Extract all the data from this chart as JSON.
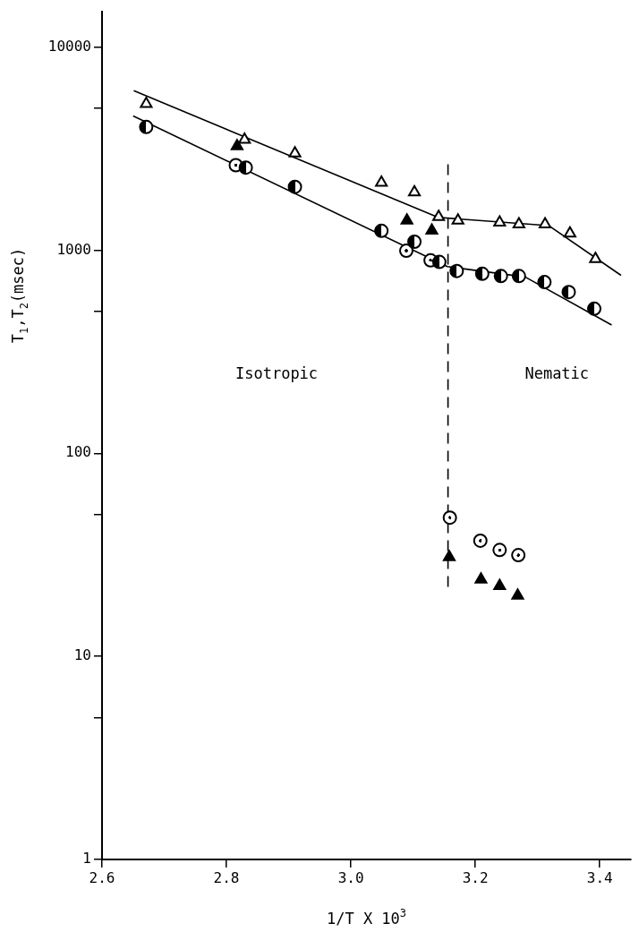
{
  "chart_data": {
    "type": "scatter",
    "xlabel": "1/T X 10$^{3}$",
    "ylabel": "T$_{1}$,T$_{2}$(msec)",
    "xlim": [
      2.6,
      3.45
    ],
    "xticks": [
      2.6,
      2.8,
      {
        "value": 3,
        "label": "3.0"
      },
      3.2,
      3.4
    ],
    "ylim": [
      1,
      15000
    ],
    "yticks": [
      1,
      {
        "value": 5,
        "label": null
      },
      10,
      {
        "value": 50,
        "label": null
      },
      100,
      {
        "value": 500,
        "label": null
      },
      1000,
      {
        "value": 5000,
        "label": null
      },
      10000
    ],
    "log": "y",
    "legend": false,
    "annotations": [
      "Isotropic",
      "Nematic"
    ],
    "series": [
      {
        "marker": "triangle",
        "color": "#000000",
        "x": [
          2.671,
          2.829,
          2.91,
          3.049,
          3.102,
          3.141,
          3.172,
          3.239,
          3.27,
          3.312,
          3.352,
          3.393
        ],
        "values": [
          5250,
          3500,
          3000,
          2150,
          1930,
          1460,
          1400,
          1370,
          1340,
          1340,
          1210,
          905
        ]
      },
      {
        "marker": "circle",
        "color": "#000000",
        "x": [
          2.671,
          2.831,
          2.91,
          3.049,
          3.102,
          3.142,
          3.17,
          3.211,
          3.241,
          3.27,
          3.311,
          3.35,
          3.391
        ],
        "values": [
          4040,
          2550,
          2050,
          1245,
          1100,
          875,
          790,
          765,
          746,
          746,
          696,
          622,
          515
        ]
      },
      {
        "marker": "triangle",
        "color": "#000000",
        "x": [
          2.817,
          3.09,
          3.13,
          3.158,
          3.209,
          3.239,
          3.268
        ],
        "values": [
          3250,
          1400,
          1250,
          30.8,
          23.9,
          22.2,
          19.9
        ]
      },
      {
        "marker": "circle",
        "color": "#000000",
        "x": [
          2.815,
          3.089,
          3.128,
          3.159,
          3.208,
          3.239,
          3.269
        ],
        "values": [
          2620,
          993,
          891,
          48.2,
          37.1,
          33.4,
          31.5
        ]
      },
      {
        "type": "line",
        "marker": "none",
        "line_style": "solid",
        "color": "#000000",
        "x": [
          2.651,
          3.14,
          3.318,
          3.434
        ],
        "values": [
          6100,
          1450,
          1320,
          752
        ]
      },
      {
        "type": "line",
        "marker": "none",
        "line_style": "solid",
        "color": "#000000",
        "x": [
          2.65,
          3.155,
          3.28,
          3.419
        ],
        "values": [
          4580,
          830,
          738,
          428
        ]
      },
      {
        "type": "line",
        "marker": "none",
        "line_style": "dashed",
        "color": "#000000",
        "x": [
          3.156,
          3.156
        ],
        "values": [
          22,
          2800
        ]
      }
    ]
  }
}
